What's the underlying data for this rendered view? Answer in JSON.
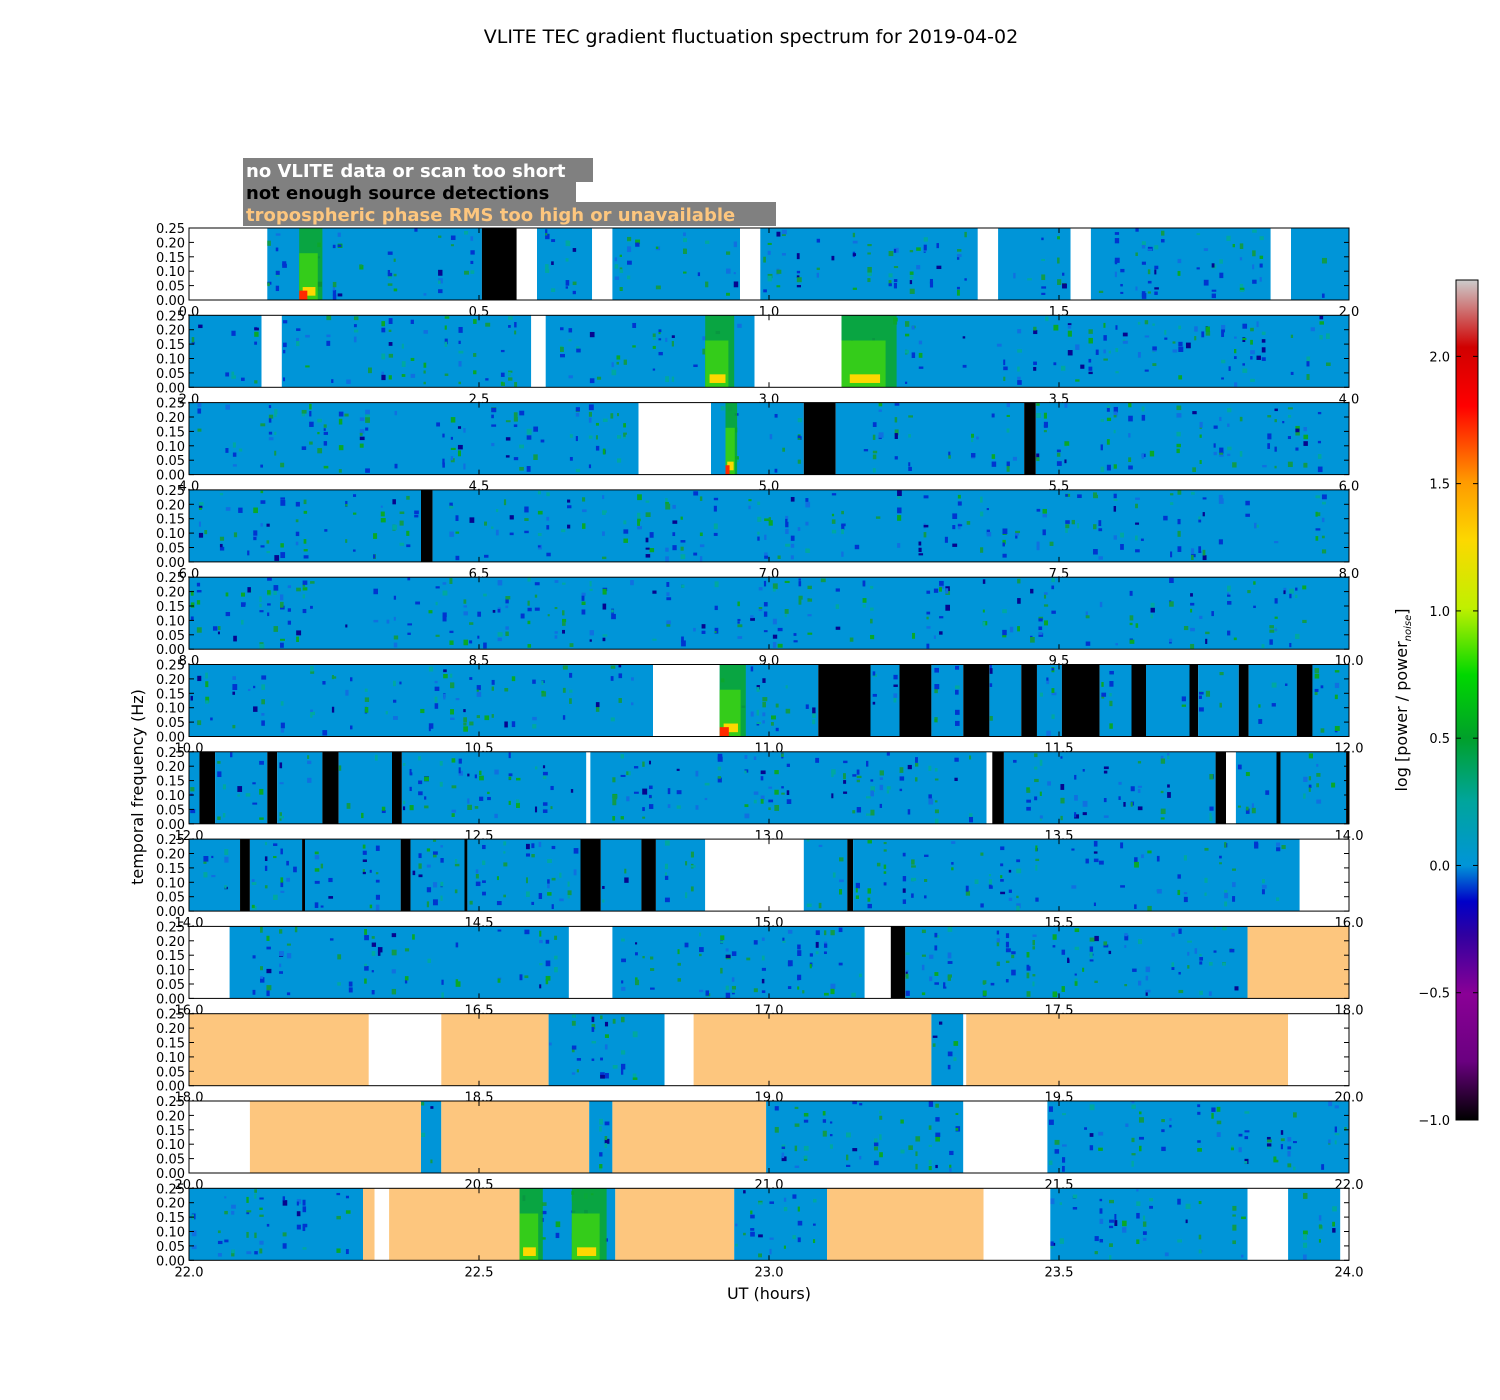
{
  "chart_data": {
    "type": "heatmap",
    "title": "VLITE TEC gradient fluctuation spectrum for 2019-04-02",
    "xlabel": "UT (hours)",
    "ylabel": "temporal frequency (Hz)",
    "yticks": [
      "0.00",
      "0.05",
      "0.10",
      "0.15",
      "0.20",
      "0.25"
    ],
    "ylim": [
      0,
      0.25
    ],
    "legend": [
      {
        "label": "no VLITE data or scan too short",
        "text_color": "#ffffff",
        "bg": "#808080"
      },
      {
        "label": "not enough source detections",
        "text_color": "#000000",
        "bg": "#808080"
      },
      {
        "label": "tropospheric phase RMS too high or unavailable",
        "text_color": "#fdc67e",
        "bg": "#808080"
      }
    ],
    "colorbar": {
      "label": "log [power / power",
      "label_sub": "noise",
      "label_close": "]",
      "range": [
        -1.0,
        2.3
      ],
      "ticks": [
        "−1.0",
        "−0.5",
        "0.0",
        "0.5",
        "1.0",
        "1.5",
        "2.0"
      ],
      "tick_values": [
        -1.0,
        -0.5,
        0.0,
        0.5,
        1.0,
        1.5,
        2.0
      ]
    },
    "colors": {
      "base": "#0095d8",
      "none": "#ffffff",
      "nodet": "#000000",
      "trop": "#fdc67e",
      "legend_bg": "#808080"
    },
    "panels": [
      {
        "ticks": [
          "0.0",
          "0.5",
          "1.0",
          "1.5",
          "2.0"
        ],
        "range": [
          0,
          2
        ],
        "segments": [
          [
            "none",
            0.0,
            0.135
          ],
          [
            "data",
            0.135,
            0.505
          ],
          [
            "nodet",
            0.505,
            0.565
          ],
          [
            "none",
            0.565,
            0.6
          ],
          [
            "data",
            0.6,
            0.695
          ],
          [
            "none",
            0.695,
            0.73
          ],
          [
            "data",
            0.73,
            0.95
          ],
          [
            "none",
            0.95,
            0.985
          ],
          [
            "data",
            0.985,
            1.36
          ],
          [
            "none",
            1.36,
            1.395
          ],
          [
            "data",
            1.395,
            1.52
          ],
          [
            "none",
            1.52,
            1.555
          ],
          [
            "data",
            1.555,
            1.865
          ],
          [
            "none",
            1.865,
            1.9
          ],
          [
            "data",
            1.9,
            2.0
          ]
        ],
        "hot": [
          [
            0.19,
            0.23,
            0.9
          ]
        ]
      },
      {
        "ticks": [
          "2.0",
          "2.5",
          "3.0",
          "3.5",
          "4.0"
        ],
        "range": [
          2,
          4
        ],
        "segments": [
          [
            "data",
            2.0,
            2.125
          ],
          [
            "none",
            2.125,
            2.16
          ],
          [
            "data",
            2.16,
            2.59
          ],
          [
            "none",
            2.59,
            2.615
          ],
          [
            "data",
            2.615,
            2.975
          ],
          [
            "none",
            2.975,
            3.125
          ],
          [
            "data",
            3.125,
            4.0
          ]
        ],
        "hot": [
          [
            2.89,
            2.94,
            0.7
          ],
          [
            3.125,
            3.22,
            0.7
          ]
        ]
      },
      {
        "ticks": [
          "4.0",
          "4.5",
          "5.0",
          "5.5",
          "6.0"
        ],
        "range": [
          4,
          6
        ],
        "segments": [
          [
            "data",
            4.0,
            4.775
          ],
          [
            "none",
            4.775,
            4.9
          ],
          [
            "data",
            4.9,
            5.06
          ],
          [
            "nodet",
            5.06,
            5.115
          ],
          [
            "data",
            5.115,
            5.44
          ],
          [
            "nodet",
            5.44,
            5.46
          ],
          [
            "data",
            5.46,
            6.0
          ]
        ],
        "hot": [
          [
            4.925,
            4.945,
            1.0
          ]
        ]
      },
      {
        "ticks": [
          "6.0",
          "6.5",
          "7.0",
          "7.5",
          "8.0"
        ],
        "range": [
          6,
          8
        ],
        "segments": [
          [
            "data",
            6.0,
            6.4
          ],
          [
            "nodet",
            6.4,
            6.42
          ],
          [
            "data",
            6.42,
            8.0
          ]
        ],
        "hot": []
      },
      {
        "ticks": [
          "8.0",
          "8.5",
          "9.0",
          "9.5",
          "10.0"
        ],
        "range": [
          8,
          10
        ],
        "segments": [
          [
            "data",
            8.0,
            10.0
          ]
        ],
        "hot": []
      },
      {
        "ticks": [
          "10.0",
          "10.5",
          "11.0",
          "11.5",
          "12.0"
        ],
        "range": [
          10,
          12
        ],
        "segments": [
          [
            "data",
            10.0,
            10.8
          ],
          [
            "none",
            10.8,
            10.915
          ],
          [
            "data",
            10.915,
            11.085
          ],
          [
            "nodet",
            11.085,
            11.175
          ],
          [
            "data",
            11.175,
            11.225
          ],
          [
            "nodet",
            11.225,
            11.28
          ],
          [
            "data",
            11.28,
            11.335
          ],
          [
            "nodet",
            11.335,
            11.38
          ],
          [
            "data",
            11.38,
            11.435
          ],
          [
            "nodet",
            11.435,
            11.462
          ],
          [
            "data",
            11.462,
            11.505
          ],
          [
            "nodet",
            11.505,
            11.57
          ],
          [
            "data",
            11.57,
            11.625
          ],
          [
            "nodet",
            11.625,
            11.65
          ],
          [
            "data",
            11.65,
            11.725
          ],
          [
            "nodet",
            11.725,
            11.74
          ],
          [
            "data",
            11.74,
            11.81
          ],
          [
            "nodet",
            11.81,
            11.827
          ],
          [
            "data",
            11.827,
            11.91
          ],
          [
            "nodet",
            11.91,
            11.937
          ],
          [
            "data",
            11.937,
            12.0
          ]
        ],
        "hot": [
          [
            10.915,
            10.96,
            1.0
          ]
        ]
      },
      {
        "ticks": [
          "12.0",
          "12.5",
          "13.0",
          "13.5",
          "14.0"
        ],
        "range": [
          12,
          14
        ],
        "segments": [
          [
            "data",
            12.0,
            12.018
          ],
          [
            "nodet",
            12.018,
            12.045
          ],
          [
            "data",
            12.045,
            12.135
          ],
          [
            "nodet",
            12.135,
            12.152
          ],
          [
            "data",
            12.152,
            12.23
          ],
          [
            "nodet",
            12.23,
            12.258
          ],
          [
            "data",
            12.258,
            12.35
          ],
          [
            "nodet",
            12.35,
            12.367
          ],
          [
            "data",
            12.367,
            12.685
          ],
          [
            "none",
            12.685,
            12.692
          ],
          [
            "data",
            12.692,
            13.375
          ],
          [
            "none",
            13.375,
            13.385
          ],
          [
            "nodet",
            13.385,
            13.405
          ],
          [
            "data",
            13.405,
            13.77
          ],
          [
            "nodet",
            13.77,
            13.788
          ],
          [
            "none",
            13.788,
            13.805
          ],
          [
            "data",
            13.805,
            13.875
          ],
          [
            "nodet",
            13.875,
            13.882
          ],
          [
            "data",
            13.882,
            13.995
          ],
          [
            "nodet",
            13.995,
            14.0
          ]
        ],
        "hot": []
      },
      {
        "ticks": [
          "14.0",
          "14.5",
          "15.0",
          "15.5",
          "16.0"
        ],
        "range": [
          14,
          16
        ],
        "segments": [
          [
            "data",
            14.0,
            14.088
          ],
          [
            "nodet",
            14.088,
            14.105
          ],
          [
            "data",
            14.105,
            14.195
          ],
          [
            "nodet",
            14.195,
            14.2
          ],
          [
            "data",
            14.2,
            14.365
          ],
          [
            "nodet",
            14.365,
            14.382
          ],
          [
            "data",
            14.382,
            14.475
          ],
          [
            "nodet",
            14.475,
            14.48
          ],
          [
            "data",
            14.48,
            14.675
          ],
          [
            "nodet",
            14.675,
            14.71
          ],
          [
            "data",
            14.71,
            14.78
          ],
          [
            "nodet",
            14.78,
            14.805
          ],
          [
            "data",
            14.805,
            14.89
          ],
          [
            "none",
            14.89,
            15.06
          ],
          [
            "data",
            15.06,
            15.135
          ],
          [
            "nodet",
            15.135,
            15.145
          ],
          [
            "data",
            15.145,
            15.915
          ],
          [
            "none",
            15.915,
            16.0
          ]
        ],
        "hot": []
      },
      {
        "ticks": [
          "16.0",
          "16.5",
          "17.0",
          "17.5",
          "18.0"
        ],
        "range": [
          16,
          18
        ],
        "segments": [
          [
            "none",
            16.0,
            16.07
          ],
          [
            "data",
            16.07,
            16.655
          ],
          [
            "none",
            16.655,
            16.73
          ],
          [
            "data",
            16.73,
            17.165
          ],
          [
            "none",
            17.165,
            17.21
          ],
          [
            "nodet",
            17.21,
            17.235
          ],
          [
            "data",
            17.235,
            17.825
          ],
          [
            "trop",
            17.825,
            18.0
          ]
        ],
        "hot": []
      },
      {
        "ticks": [
          "18.0",
          "18.5",
          "19.0",
          "19.5",
          "20.0"
        ],
        "range": [
          18,
          20
        ],
        "segments": [
          [
            "trop",
            18.0,
            18.31
          ],
          [
            "none",
            18.31,
            18.435
          ],
          [
            "trop",
            18.435,
            18.62
          ],
          [
            "data",
            18.62,
            18.82
          ],
          [
            "none",
            18.82,
            18.87
          ],
          [
            "trop",
            18.87,
            19.28
          ],
          [
            "data",
            19.28,
            19.335
          ],
          [
            "none",
            19.335,
            19.34
          ],
          [
            "trop",
            19.34,
            19.895
          ],
          [
            "none",
            19.895,
            20.0
          ]
        ],
        "hot": []
      },
      {
        "ticks": [
          "20.0",
          "20.5",
          "21.0",
          "21.5",
          "22.0"
        ],
        "range": [
          20,
          22
        ],
        "segments": [
          [
            "none",
            20.0,
            20.105
          ],
          [
            "trop",
            20.105,
            20.4
          ],
          [
            "data",
            20.4,
            20.435
          ],
          [
            "trop",
            20.435,
            20.69
          ],
          [
            "data",
            20.69,
            20.73
          ],
          [
            "trop",
            20.73,
            20.995
          ],
          [
            "data",
            20.995,
            21.335
          ],
          [
            "none",
            21.335,
            21.48
          ],
          [
            "data",
            21.48,
            22.0
          ]
        ],
        "hot": []
      },
      {
        "ticks": [
          "22.0",
          "22.5",
          "23.0",
          "23.5",
          "24.0"
        ],
        "range": [
          22,
          24
        ],
        "segments": [
          [
            "data",
            22.0,
            22.3
          ],
          [
            "trop",
            22.3,
            22.32
          ],
          [
            "none",
            22.32,
            22.345
          ],
          [
            "trop",
            22.345,
            22.57
          ],
          [
            "data",
            22.57,
            22.735
          ],
          [
            "trop",
            22.735,
            22.94
          ],
          [
            "data",
            22.94,
            23.1
          ],
          [
            "trop",
            23.1,
            23.37
          ],
          [
            "none",
            23.37,
            23.485
          ],
          [
            "data",
            23.485,
            23.825
          ],
          [
            "none",
            23.825,
            23.895
          ],
          [
            "data",
            23.895,
            23.985
          ],
          [
            "none",
            23.985,
            24.0
          ]
        ],
        "hot": [
          [
            22.57,
            22.61,
            0.4
          ],
          [
            22.66,
            22.72,
            0.4
          ]
        ]
      }
    ]
  }
}
